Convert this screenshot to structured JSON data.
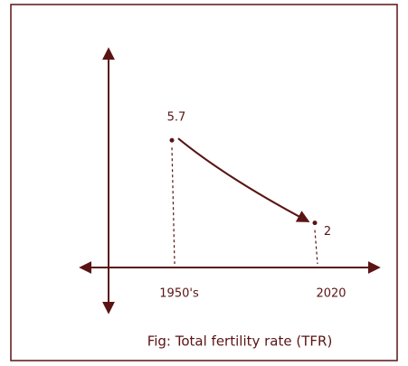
{
  "chart_data": {
    "type": "line",
    "title": "Fig: Total fertility rate (TFR)",
    "categories": [
      "1950's",
      "2020"
    ],
    "values": [
      5.7,
      2
    ],
    "value_labels": [
      "5.7",
      "2"
    ],
    "color": "#5a1414",
    "ylim": [
      0,
      10
    ]
  }
}
